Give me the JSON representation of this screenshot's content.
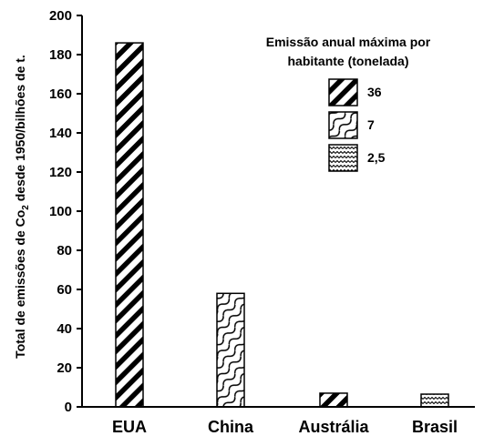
{
  "chart_data": {
    "type": "bar",
    "title": "",
    "xlabel": "",
    "ylabel_parts": [
      "Total de emissões de Co",
      "2",
      " desde 1950/bilhões de t."
    ],
    "ylim": [
      0,
      200
    ],
    "yticks": [
      "0",
      "20",
      "40",
      "60",
      "80",
      "100",
      "120",
      "140",
      "160",
      "180",
      "200"
    ],
    "categories": [
      "EUA",
      "China",
      "Austrália",
      "Brasil"
    ],
    "values": [
      186,
      58,
      7,
      6.5
    ],
    "patterns": [
      "diagonal",
      "wave",
      "diagonal",
      "zigzag"
    ],
    "legend": {
      "title_lines": [
        "Emissão anual máxima por",
        "habitante (tonelada)"
      ],
      "placement": "top-right",
      "entries": [
        {
          "label": "36",
          "pattern": "diagonal"
        },
        {
          "label": "7",
          "pattern": "wave"
        },
        {
          "label": "2,5",
          "pattern": "zigzag"
        }
      ]
    }
  }
}
